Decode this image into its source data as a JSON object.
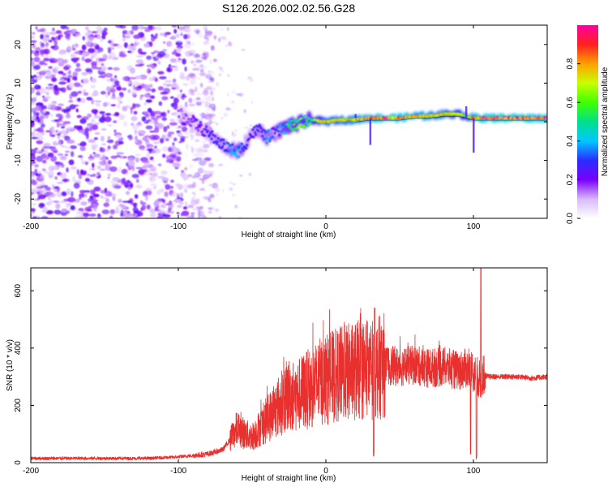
{
  "figure_title": "S126.2026.002.02.56.G28",
  "colors": {
    "snr_line": "#e8312f",
    "ridge_low": "#6a00ff",
    "ridge_mid": "#00d0ff",
    "ridge_high": "#ff2020",
    "background": "#ffffff"
  },
  "colormap": {
    "stops": [
      "#ffffff",
      "#d8b8ff",
      "#7a00ff",
      "#2c2cff",
      "#00c8ff",
      "#00e08a",
      "#40ff00",
      "#c8ff00",
      "#ffa000",
      "#ff2020",
      "#ff00a0"
    ],
    "label": "Normalized spectral amplitude",
    "ticks": [
      "0.0",
      "0.2",
      "0.4",
      "0.6",
      "0.8"
    ]
  },
  "chart_data": [
    {
      "type": "heatmap",
      "title": "S126.2026.002.02.56.G28",
      "xlabel": "Height of straight line (km)",
      "ylabel": "Frequency (Hz)",
      "xlim": [
        -200,
        150
      ],
      "ylim": [
        -25,
        25
      ],
      "x_ticks": [
        -200,
        -100,
        0,
        100
      ],
      "y_ticks": [
        -20,
        -10,
        0,
        10,
        20
      ],
      "colorbar_label": "Normalized spectral amplitude",
      "colorbar_range": [
        0,
        1
      ],
      "ridge": {
        "x": [
          -100,
          -90,
          -80,
          -70,
          -60,
          -55,
          -50,
          -45,
          -40,
          -35,
          -30,
          -25,
          -20,
          -15,
          -10,
          0,
          10,
          20,
          30,
          40,
          50,
          60,
          70,
          80,
          90,
          95,
          100,
          110,
          120,
          130,
          140,
          150
        ],
        "y": [
          2.5,
          0,
          -3,
          -6,
          -8,
          -6,
          -3,
          -2,
          -4,
          -3,
          -2,
          -1,
          -1,
          0,
          0.5,
          0,
          0.5,
          0.5,
          1,
          1,
          1,
          1.5,
          1.5,
          2,
          2,
          1.5,
          1,
          1,
          1,
          1,
          1,
          1
        ],
        "amplitude": [
          0.15,
          0.2,
          0.25,
          0.3,
          0.4,
          0.3,
          0.25,
          0.3,
          0.35,
          0.3,
          0.4,
          0.5,
          0.6,
          0.6,
          0.55,
          0.75,
          0.75,
          0.8,
          0.85,
          0.9,
          0.9,
          0.85,
          0.8,
          0.75,
          0.7,
          0.6,
          0.85,
          0.9,
          0.95,
          0.95,
          0.9,
          0.9
        ]
      }
    },
    {
      "type": "line",
      "series": [
        {
          "name": "SNR",
          "x": [
            -200,
            -180,
            -160,
            -140,
            -120,
            -100,
            -90,
            -80,
            -70,
            -65,
            -60,
            -55,
            -50,
            -45,
            -40,
            -35,
            -30,
            -25,
            -20,
            -15,
            -10,
            -5,
            0,
            10,
            20,
            30,
            33,
            35,
            40,
            50,
            60,
            70,
            80,
            90,
            95,
            100,
            103,
            105,
            107,
            110,
            120,
            130,
            140,
            150
          ],
          "y": [
            15,
            15,
            15,
            15,
            15,
            20,
            25,
            30,
            45,
            80,
            120,
            100,
            90,
            120,
            150,
            180,
            210,
            240,
            230,
            250,
            260,
            280,
            290,
            310,
            320,
            330,
            320,
            330,
            340,
            335,
            340,
            330,
            335,
            320,
            330,
            310,
            300,
            280,
            310,
            300,
            300,
            300,
            295,
            300
          ]
        }
      ],
      "xlabel": "Height of straight line (km)",
      "ylabel": "SNR (10 * v/v)",
      "xlim": [
        -200,
        150
      ],
      "ylim": [
        0,
        680
      ],
      "x_ticks": [
        -200,
        -100,
        0,
        100
      ],
      "y_ticks": [
        0,
        200,
        400,
        600
      ]
    }
  ]
}
